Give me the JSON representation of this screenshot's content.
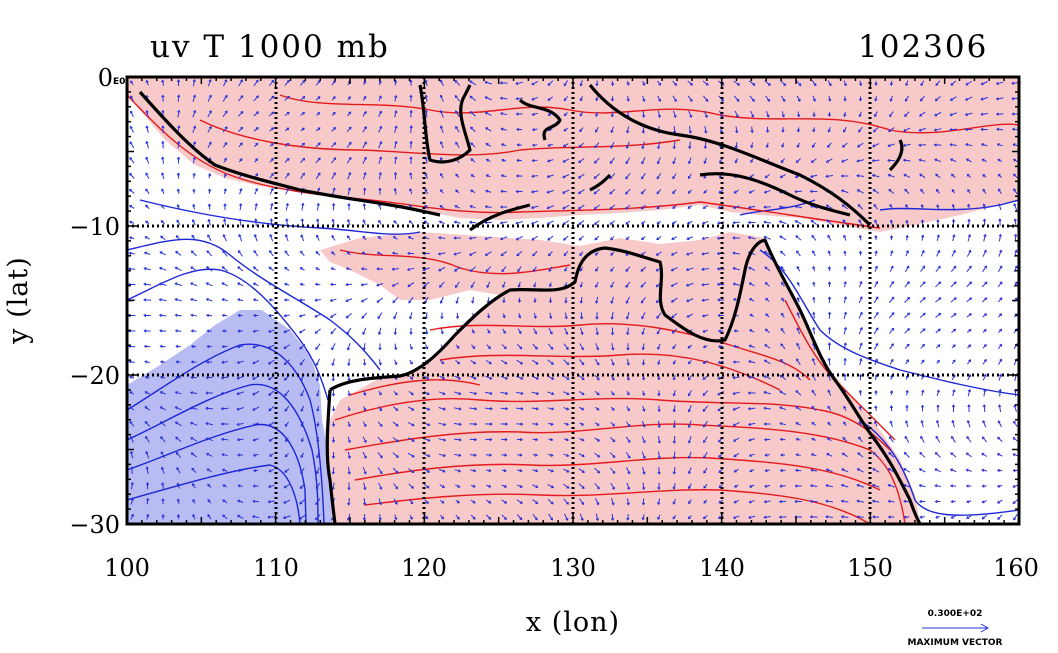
{
  "header": {
    "title": "uv T 1000 mb",
    "code": "102306",
    "corner_tag": "E0"
  },
  "axes": {
    "xlabel": "x (lon)",
    "ylabel": "y (lat)",
    "xlim": [
      100,
      160
    ],
    "ylim": [
      -30,
      0
    ],
    "xticks": [
      "100",
      "110",
      "120",
      "130",
      "140",
      "150",
      "160"
    ],
    "yticks": [
      "0",
      "−10",
      "−20",
      "−30"
    ],
    "grid": true
  },
  "legend": {
    "vector_value": "0.300E+02",
    "vector_label": "MAXIMUM VECTOR"
  },
  "colors": {
    "warm_fill": "#f7c9c9",
    "cold_fill": "#b8bcf2",
    "warm_contour": "#e41a1c",
    "cold_contour": "#1c27d8",
    "vector": "#2a33d6",
    "coast": "#000000"
  }
}
